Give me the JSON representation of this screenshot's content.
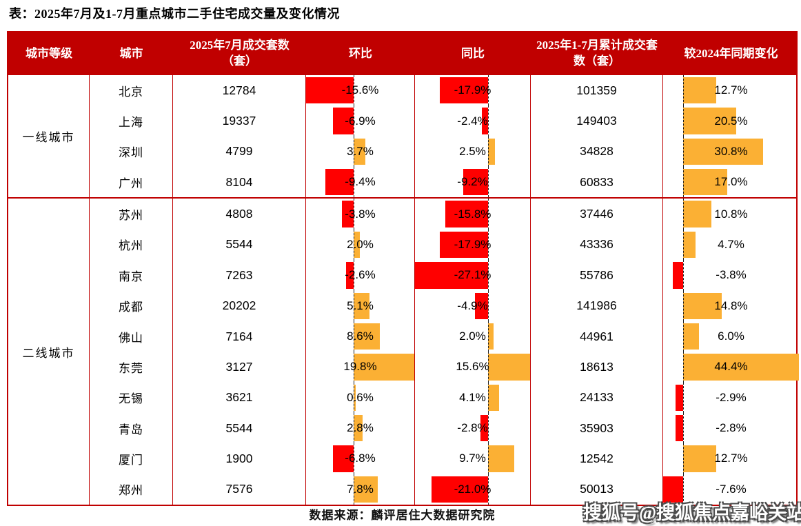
{
  "title": "表：2025年7月及1-7月重点城市二手住宅成交量及变化情况",
  "source": "数据来源：麟评居住大数据研究院",
  "watermark": "搜狐号@搜狐焦点嘉峪关站",
  "colors": {
    "header_bg": "#C00000",
    "border": "#C00000",
    "negative_bar": "#FF0000",
    "positive_bar": "#FBB034"
  },
  "table": {
    "columns": [
      {
        "key": "tier",
        "label": "城市等级"
      },
      {
        "key": "city",
        "label": "城市"
      },
      {
        "key": "jul",
        "label": "2025年7月成交套数（套）"
      },
      {
        "key": "mom",
        "label": "环比"
      },
      {
        "key": "yoy",
        "label": "同比"
      },
      {
        "key": "cum",
        "label": "2025年1-7月累计成交套数（套）"
      },
      {
        "key": "chg",
        "label": "较2024年同期变化"
      }
    ],
    "groups": [
      {
        "tier": "一线城市",
        "rows": [
          {
            "city": "北京",
            "jul": "12784",
            "mom": -15.6,
            "yoy": -17.9,
            "cum": "101359",
            "chg": 12.7
          },
          {
            "city": "上海",
            "jul": "19337",
            "mom": -6.9,
            "yoy": -2.4,
            "cum": "149403",
            "chg": 20.5
          },
          {
            "city": "深圳",
            "jul": "4799",
            "mom": 3.7,
            "yoy": 2.5,
            "cum": "34828",
            "chg": 30.8
          },
          {
            "city": "广州",
            "jul": "8104",
            "mom": -9.4,
            "yoy": -9.2,
            "cum": "60833",
            "chg": 17.0
          }
        ]
      },
      {
        "tier": "二线城市",
        "rows": [
          {
            "city": "苏州",
            "jul": "4808",
            "mom": -3.8,
            "yoy": -15.8,
            "cum": "37446",
            "chg": 10.8
          },
          {
            "city": "杭州",
            "jul": "5544",
            "mom": 2.0,
            "yoy": -17.9,
            "cum": "43336",
            "chg": 4.7
          },
          {
            "city": "南京",
            "jul": "7263",
            "mom": -2.6,
            "yoy": -27.1,
            "cum": "55786",
            "chg": -3.8
          },
          {
            "city": "成都",
            "jul": "20202",
            "mom": 5.1,
            "yoy": -4.9,
            "cum": "141986",
            "chg": 14.8
          },
          {
            "city": "佛山",
            "jul": "7164",
            "mom": 8.6,
            "yoy": 2.0,
            "cum": "44961",
            "chg": 6.0
          },
          {
            "city": "东莞",
            "jul": "3127",
            "mom": 19.8,
            "yoy": 15.6,
            "cum": "18613",
            "chg": 44.4
          },
          {
            "city": "无锡",
            "jul": "3621",
            "mom": 0.6,
            "yoy": 4.1,
            "cum": "24133",
            "chg": -2.9
          },
          {
            "city": "青岛",
            "jul": "5544",
            "mom": 2.8,
            "yoy": -2.8,
            "cum": "35903",
            "chg": -2.8
          },
          {
            "city": "厦门",
            "jul": "1900",
            "mom": -6.8,
            "yoy": 9.7,
            "cum": "12542",
            "chg": 12.7
          },
          {
            "city": "郑州",
            "jul": "7576",
            "mom": 7.8,
            "yoy": -21.0,
            "cum": "50013",
            "chg": -7.6
          }
        ]
      }
    ]
  },
  "chart_data": {
    "type": "table",
    "title": "表：2025年7月及1-7月重点城市二手住宅成交量及变化情况",
    "columns": [
      "城市等级",
      "城市",
      "2025年7月成交套数（套）",
      "环比",
      "同比",
      "2025年1-7月累计成交套数（套）",
      "较2024年同期变化"
    ],
    "rows": [
      [
        "一线城市",
        "北京",
        12784,
        -15.6,
        -17.9,
        101359,
        12.7
      ],
      [
        "一线城市",
        "上海",
        19337,
        -6.9,
        -2.4,
        149403,
        20.5
      ],
      [
        "一线城市",
        "深圳",
        4799,
        3.7,
        2.5,
        34828,
        30.8
      ],
      [
        "一线城市",
        "广州",
        8104,
        -9.4,
        -9.2,
        60833,
        17.0
      ],
      [
        "二线城市",
        "苏州",
        4808,
        -3.8,
        -15.8,
        37446,
        10.8
      ],
      [
        "二线城市",
        "杭州",
        5544,
        2.0,
        -17.9,
        43336,
        4.7
      ],
      [
        "二线城市",
        "南京",
        7263,
        -2.6,
        -27.1,
        55786,
        -3.8
      ],
      [
        "二线城市",
        "成都",
        20202,
        5.1,
        -4.9,
        141986,
        14.8
      ],
      [
        "二线城市",
        "佛山",
        7164,
        8.6,
        2.0,
        44961,
        6.0
      ],
      [
        "二线城市",
        "东莞",
        3127,
        19.8,
        15.6,
        18613,
        44.4
      ],
      [
        "二线城市",
        "无锡",
        3621,
        0.6,
        4.1,
        24133,
        -2.9
      ],
      [
        "二线城市",
        "青岛",
        5544,
        2.8,
        -2.8,
        35903,
        -2.8
      ],
      [
        "二线城市",
        "厦门",
        1900,
        -6.8,
        9.7,
        12542,
        12.7
      ],
      [
        "二线城市",
        "郑州",
        7576,
        7.8,
        -21.0,
        50013,
        -7.6
      ]
    ],
    "bar_columns": [
      "环比",
      "同比",
      "较2024年同期变化"
    ],
    "bar_style": "in-cell horizontal bars from dashed zero baseline; negative = red bar extending left, positive = orange bar extending right; extremes scaled to touch column edges",
    "legend_position": "none",
    "grid": false
  }
}
